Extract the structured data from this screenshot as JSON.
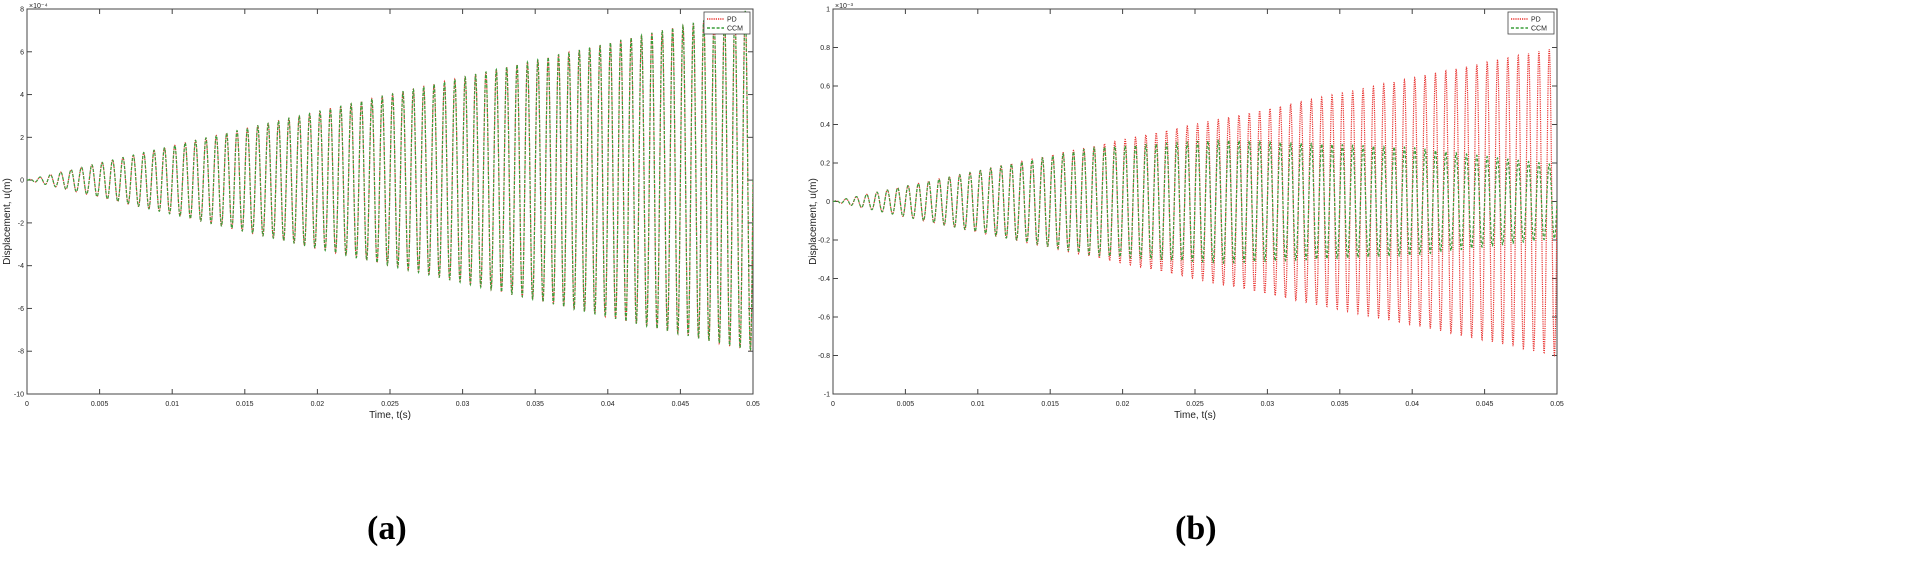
{
  "chart_data": [
    {
      "panel_label": "(a)",
      "type": "line",
      "xlabel": "Time, t(s)",
      "ylabel": "Displacement, u(m)",
      "xlim": [
        0,
        0.05
      ],
      "ylim": [
        -10,
        8
      ],
      "y_exponent_label": "×10⁻⁴",
      "xticks": [
        0,
        0.005,
        0.01,
        0.015,
        0.02,
        0.025,
        0.03,
        0.035,
        0.04,
        0.045,
        0.05
      ],
      "xtick_labels": [
        "0",
        "0.005",
        "0.01",
        "0.015",
        "0.02",
        "0.025",
        "0.03",
        "0.035",
        "0.04",
        "0.045",
        "0.05"
      ],
      "yticks": [
        -10,
        -8,
        -6,
        -4,
        -2,
        0,
        2,
        4,
        6,
        8
      ],
      "ytick_labels": [
        "-10",
        "-8",
        "-6",
        "-4",
        "-2",
        "0",
        "2",
        "4",
        "6",
        "8"
      ],
      "grid": false,
      "legend_position": "top-right",
      "oscillation": {
        "cycles": 70,
        "envelope_slope_per_s": 160,
        "amplitude_cap": 8.0
      },
      "series": [
        {
          "name": "PD",
          "color": "#e8322f",
          "style": "dotted",
          "amplitude_scale": 1.0
        },
        {
          "name": "CCM",
          "color": "#3a9e3a",
          "style": "dashed",
          "amplitude_scale": 1.0
        }
      ]
    },
    {
      "panel_label": "(b)",
      "type": "line",
      "xlabel": "Time, t(s)",
      "ylabel": "Displacement, u(m)",
      "xlim": [
        0,
        0.05
      ],
      "ylim": [
        -1,
        1
      ],
      "y_exponent_label": "×10⁻³",
      "xticks": [
        0,
        0.005,
        0.01,
        0.015,
        0.02,
        0.025,
        0.03,
        0.035,
        0.04,
        0.045,
        0.05
      ],
      "xtick_labels": [
        "0",
        "0.005",
        "0.01",
        "0.015",
        "0.02",
        "0.025",
        "0.03",
        "0.035",
        "0.04",
        "0.045",
        "0.05"
      ],
      "yticks": [
        -1,
        -0.8,
        -0.6,
        -0.4,
        -0.2,
        0,
        0.2,
        0.4,
        0.6,
        0.8,
        1
      ],
      "ytick_labels": [
        "-1",
        "-0.8",
        "-0.6",
        "-0.4",
        "-0.2",
        "0",
        "0.2",
        "0.4",
        "0.6",
        "0.8",
        "1"
      ],
      "grid": false,
      "legend_position": "top-right",
      "oscillation": {
        "cycles": 70,
        "envelope_slope_per_s": 16,
        "amplitude_cap": 0.8
      },
      "series": [
        {
          "name": "PD",
          "color": "#e8322f",
          "style": "dotted",
          "amplitude_scale": 1.0
        },
        {
          "name": "CCM",
          "color": "#3a9e3a",
          "style": "dashed",
          "amplitude_envelope": [
            [
              0,
              0
            ],
            [
              0.012,
              0.19
            ],
            [
              0.018,
              0.28
            ],
            [
              0.027,
              0.32
            ],
            [
              0.04,
              0.28
            ],
            [
              0.05,
              0.19
            ]
          ]
        }
      ]
    }
  ]
}
